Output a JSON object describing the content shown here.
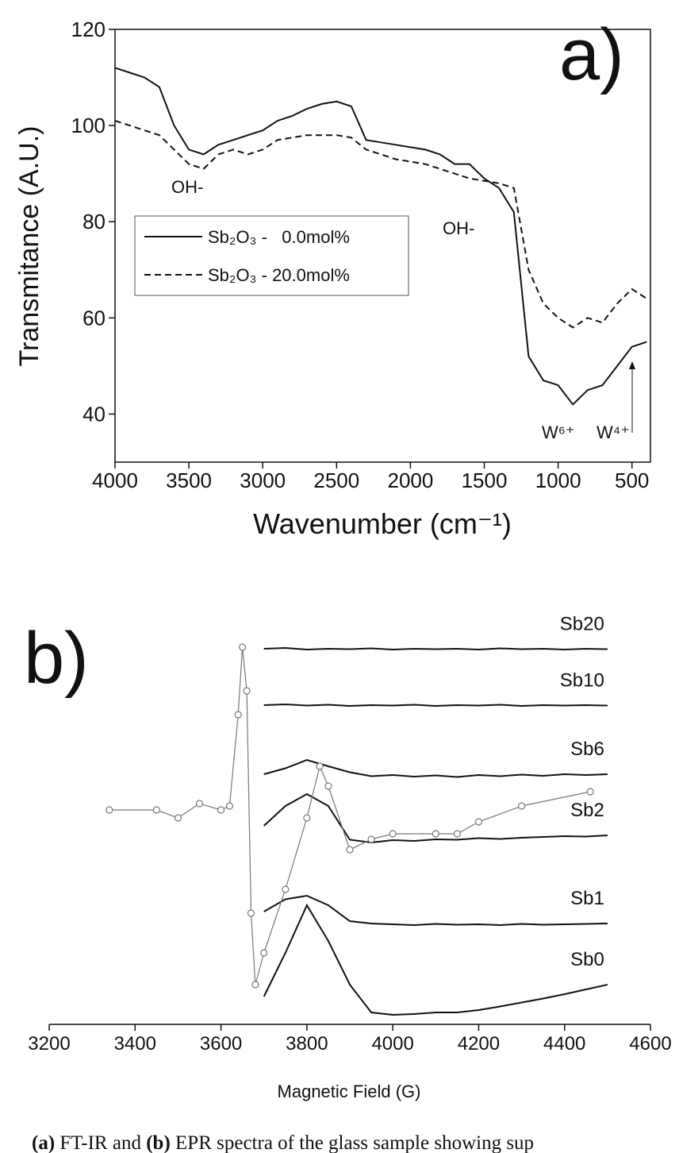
{
  "chart_data": [
    {
      "type": "line",
      "panel_label": "a)",
      "xlabel": "Wavenumber (cm⁻¹)",
      "ylabel": "Transmitance (A.U.)",
      "xlim": [
        4000,
        375
      ],
      "ylim": [
        30,
        120
      ],
      "xticks": [
        4000,
        3500,
        3000,
        2500,
        2000,
        1500,
        1000,
        500
      ],
      "yticks": [
        40,
        60,
        80,
        100,
        120
      ],
      "annotations": [
        "OH-",
        "OH-",
        "W⁶⁺",
        "W⁴⁺"
      ],
      "x": [
        4000,
        3900,
        3800,
        3700,
        3600,
        3500,
        3400,
        3300,
        3200,
        3100,
        3000,
        2900,
        2800,
        2700,
        2600,
        2500,
        2400,
        2300,
        2200,
        2100,
        2000,
        1900,
        1800,
        1700,
        1600,
        1500,
        1400,
        1300,
        1200,
        1100,
        1000,
        900,
        800,
        700,
        600,
        500,
        400
      ],
      "series": [
        {
          "name": "Sb₂O₃ -   0.0mol%",
          "color": "#111111",
          "style": "solid",
          "values": [
            112,
            111,
            110,
            108,
            100,
            95,
            94,
            96,
            97,
            98,
            99,
            101,
            102,
            103.5,
            104.5,
            105,
            104,
            97,
            96.5,
            96,
            95.5,
            95,
            94,
            92,
            92,
            89,
            87,
            82,
            52,
            47,
            46,
            42,
            45,
            46,
            50,
            54,
            55
          ]
        },
        {
          "name": "Sb₂O₃ - 20.0mol%",
          "color": "#111111",
          "style": "dashed",
          "values": [
            101,
            100,
            99,
            98,
            95,
            92,
            91,
            94,
            95,
            94,
            95,
            97,
            97.5,
            98,
            98,
            98,
            97.5,
            95,
            94,
            93,
            92.5,
            92,
            91,
            90,
            89,
            88.5,
            88,
            87,
            70,
            63,
            60,
            58,
            60,
            59,
            63,
            66,
            64
          ]
        }
      ]
    },
    {
      "type": "line",
      "panel_label": "b)",
      "xlabel": "Magnetic Field (G)",
      "xlim": [
        3200,
        4600
      ],
      "ylim": [
        0,
        100
      ],
      "xticks": [
        3200,
        3400,
        3600,
        3800,
        4000,
        4200,
        4400,
        4600
      ],
      "series": [
        {
          "name": "Sb20",
          "color": "#111111",
          "x": [
            3700,
            3750,
            3800,
            3850,
            3900,
            3950,
            4000,
            4050,
            4100,
            4150,
            4200,
            4250,
            4300,
            4350,
            4400,
            4450,
            4500
          ],
          "values": [
            94.6,
            94.8,
            94.4,
            94.6,
            94.5,
            94.7,
            94.4,
            94.6,
            94.5,
            94.6,
            94.4,
            94.7,
            94.5,
            94.6,
            94.4,
            94.6,
            94.5
          ]
        },
        {
          "name": "Sb10",
          "color": "#111111",
          "x": [
            3700,
            3750,
            3800,
            3850,
            3900,
            3950,
            4000,
            4050,
            4100,
            4150,
            4200,
            4250,
            4300,
            4350,
            4400,
            4450,
            4500
          ],
          "values": [
            80.4,
            80.6,
            80.3,
            80.5,
            80.2,
            80.4,
            80.3,
            80.5,
            80.2,
            80.4,
            80.3,
            80.5,
            80.2,
            80.4,
            80.3,
            80.4,
            80.3
          ]
        },
        {
          "name": "Sb6",
          "color": "#111111",
          "x": [
            3700,
            3750,
            3800,
            3850,
            3900,
            3950,
            4000,
            4050,
            4100,
            4150,
            4200,
            4250,
            4300,
            4350,
            4400,
            4450,
            4500
          ],
          "values": [
            63,
            64.5,
            66.6,
            65,
            63.5,
            62.5,
            62.8,
            62.4,
            62.7,
            62.3,
            62.8,
            62.5,
            62.9,
            62.6,
            63,
            62.8,
            63
          ]
        },
        {
          "name": "Sb2",
          "color": "#111111",
          "x": [
            3700,
            3750,
            3800,
            3850,
            3900,
            3950,
            4000,
            4050,
            4100,
            4150,
            4200,
            4250,
            4300,
            4350,
            4400,
            4450,
            4500
          ],
          "values": [
            50,
            55,
            58,
            55,
            46.5,
            45.8,
            46.4,
            46.2,
            46.6,
            46.5,
            46.9,
            46.7,
            47,
            47.2,
            47.4,
            47.3,
            47.6
          ]
        },
        {
          "name": "Sb1",
          "color": "#111111",
          "x": [
            3700,
            3750,
            3800,
            3850,
            3900,
            3950,
            4000,
            4050,
            4100,
            4150,
            4200,
            4250,
            4300,
            4350,
            4400,
            4450,
            4500
          ],
          "values": [
            28.4,
            31.5,
            32.4,
            30,
            26,
            25.4,
            25.2,
            25,
            25.3,
            25.1,
            25.2,
            25,
            25.3,
            25.1,
            25.2,
            25.3,
            25.4
          ]
        },
        {
          "name": "Sb0",
          "color": "#111111",
          "x": [
            3700,
            3750,
            3800,
            3850,
            3900,
            3950,
            4000,
            4050,
            4100,
            4150,
            4200,
            4250,
            4300,
            4350,
            4400,
            4450,
            4500
          ],
          "values": [
            7,
            18,
            30,
            21,
            10,
            3,
            2.4,
            2.6,
            3,
            3,
            3.6,
            4.5,
            5.5,
            6.5,
            7.6,
            8.8,
            10
          ]
        },
        {
          "color": "#777777",
          "marker": "circle",
          "x": [
            3340,
            3450,
            3500,
            3550,
            3600,
            3620,
            3640,
            3650,
            3660,
            3670,
            3680,
            3700,
            3750,
            3800,
            3830,
            3850,
            3900,
            3950,
            4000,
            4100,
            4150,
            4200,
            4300,
            4460
          ],
          "values": [
            54,
            54,
            52,
            55.6,
            54,
            55,
            78,
            95,
            84,
            28,
            10,
            18,
            34,
            52,
            65,
            60,
            44,
            46.6,
            48,
            48,
            48,
            51,
            55,
            58.6
          ]
        }
      ]
    }
  ],
  "caption": [
    "(a)",
    " FT-IR and ",
    "(b)",
    " EPR spectra of the glass sample showing sup"
  ]
}
